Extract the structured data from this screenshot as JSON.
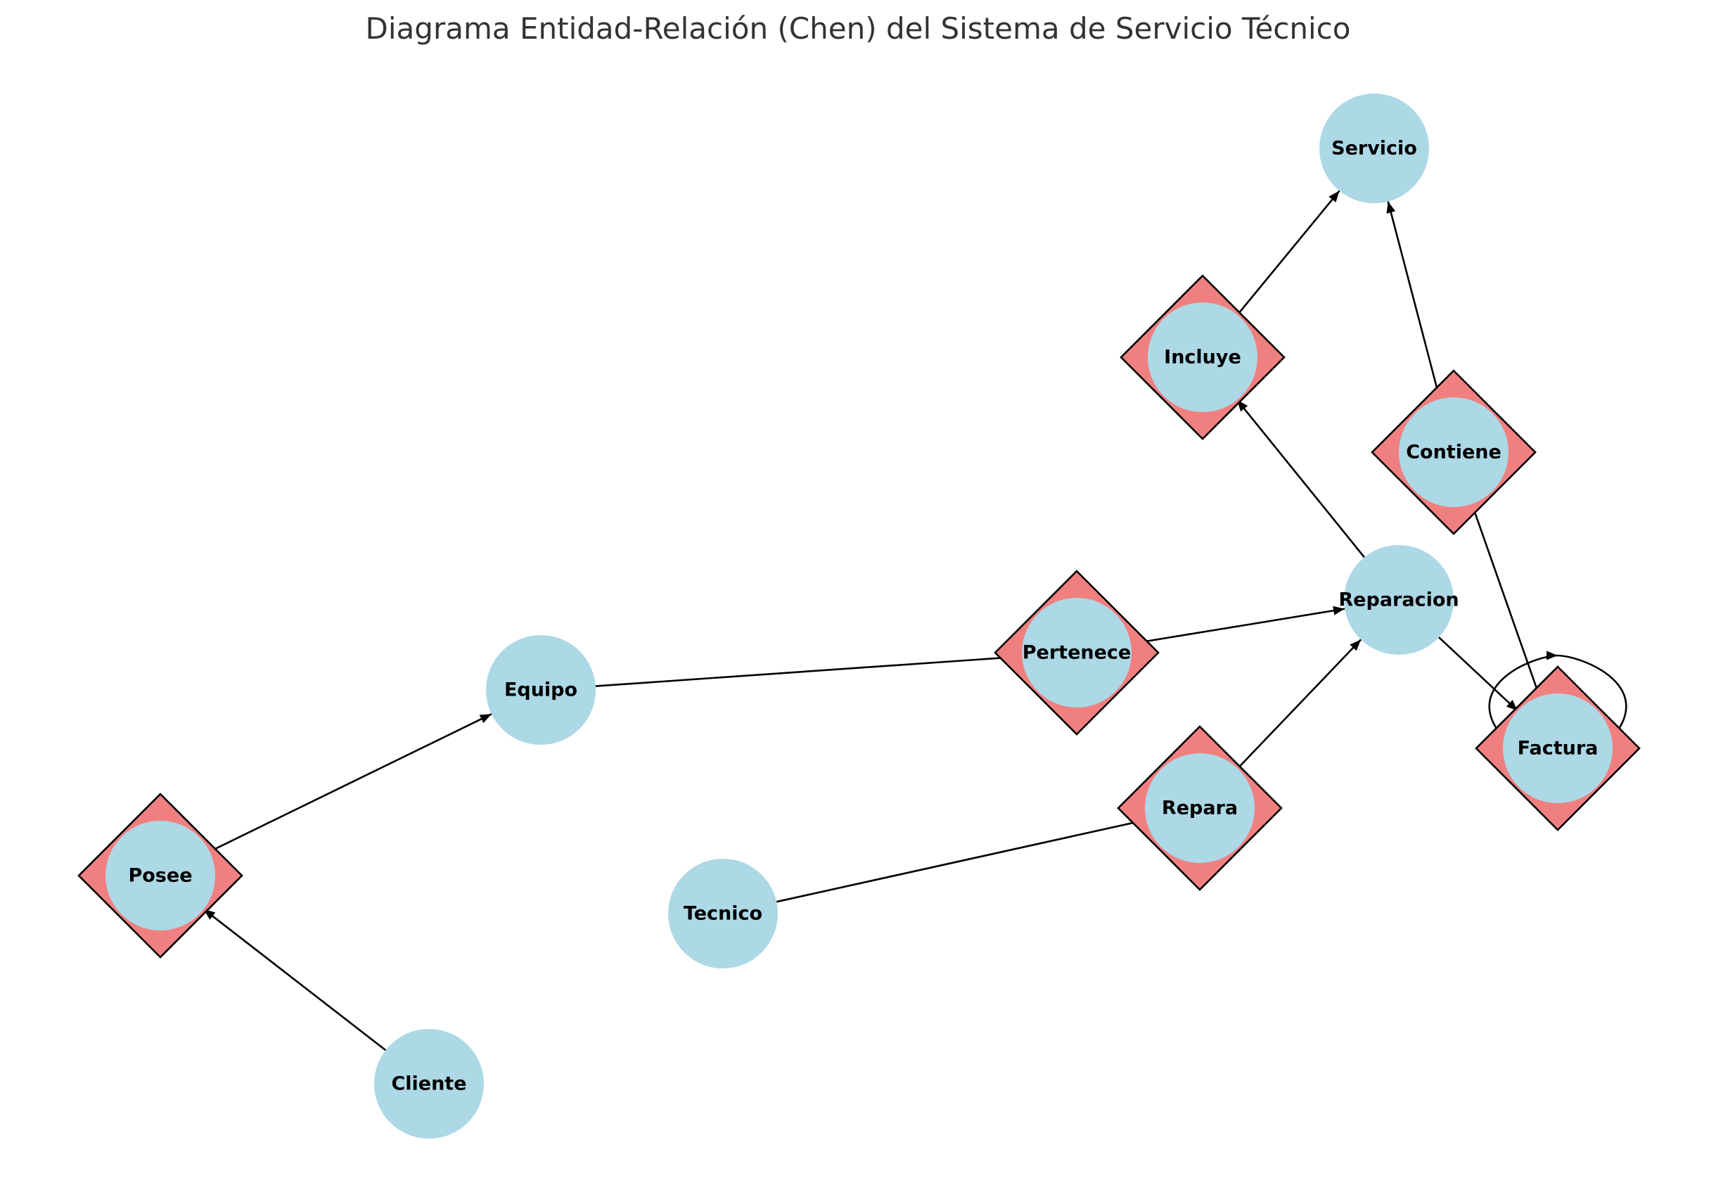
{
  "title": "Diagrama Entidad-Relación (Chen) del Sistema de Servicio Técnico",
  "colors": {
    "entity_fill": "#add8e6",
    "relationship_fill": "#f08080",
    "edge": "#000000"
  },
  "entities": [
    {
      "id": "servicio",
      "label": "Servicio"
    },
    {
      "id": "reparacion",
      "label": "Reparacion"
    },
    {
      "id": "equipo",
      "label": "Equipo"
    },
    {
      "id": "tecnico",
      "label": "Tecnico"
    },
    {
      "id": "cliente",
      "label": "Cliente"
    }
  ],
  "relationships": [
    {
      "id": "incluye",
      "label": "Incluye"
    },
    {
      "id": "contiene",
      "label": "Contiene"
    },
    {
      "id": "pertenece",
      "label": "Pertenece"
    },
    {
      "id": "repara",
      "label": "Repara"
    },
    {
      "id": "factura",
      "label": "Factura"
    },
    {
      "id": "posee",
      "label": "Posee"
    }
  ],
  "edges": [
    {
      "from": "cliente",
      "to": "posee",
      "arrow": true
    },
    {
      "from": "posee",
      "to": "equipo",
      "arrow": true
    },
    {
      "from": "equipo",
      "to": "pertenece",
      "arrow": false
    },
    {
      "from": "pertenece",
      "to": "reparacion",
      "arrow": true
    },
    {
      "from": "tecnico",
      "to": "repara",
      "arrow": false
    },
    {
      "from": "repara",
      "to": "reparacion",
      "arrow": true
    },
    {
      "from": "reparacion",
      "to": "incluye",
      "arrow": true
    },
    {
      "from": "incluye",
      "to": "servicio",
      "arrow": true
    },
    {
      "from": "factura",
      "to": "contiene",
      "arrow": false
    },
    {
      "from": "contiene",
      "to": "servicio",
      "arrow": true
    },
    {
      "from": "reparacion",
      "to": "factura",
      "arrow": true
    },
    {
      "from": "factura",
      "to": "factura",
      "arrow": true,
      "self_loop": true
    }
  ]
}
